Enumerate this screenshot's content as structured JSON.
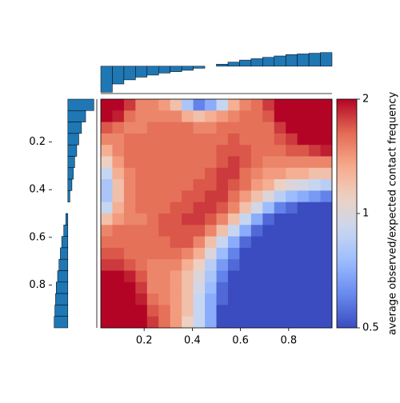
{
  "chart_data": {
    "type": "heatmap",
    "colorbar_label": "average observed/expected contact frequency",
    "xlim": [
      0.02,
      0.98
    ],
    "ylim": [
      0.02,
      0.98
    ],
    "xticks": [
      0.2,
      0.4,
      0.6,
      0.8
    ],
    "yticks": [
      0.2,
      0.4,
      0.6,
      0.8
    ],
    "clim": [
      0.5,
      2
    ],
    "cticks": [
      0.5,
      1,
      2
    ],
    "color_log_scale": true,
    "colormap": [
      "#3b4cc0",
      "#6788ee",
      "#9abbff",
      "#c9d7f0",
      "#edd1c2",
      "#f7a889",
      "#e26952",
      "#b40426"
    ],
    "z": [
      [
        2,
        2,
        1.8,
        1.5,
        1.5,
        1.4,
        1.2,
        0.8,
        0.6,
        0.7,
        0.9,
        1.3,
        1.5,
        1.6,
        1.8,
        2,
        2,
        2,
        2,
        2
      ],
      [
        2,
        1.9,
        1.6,
        1.5,
        1.5,
        1.5,
        1.5,
        1.3,
        1.2,
        1.3,
        1.4,
        1.5,
        1.6,
        1.6,
        1.7,
        2,
        2,
        2,
        2,
        2
      ],
      [
        1.7,
        1.6,
        1.5,
        1.5,
        1.6,
        1.6,
        1.6,
        1.6,
        1.5,
        1.5,
        1.6,
        1.6,
        1.6,
        1.6,
        1.6,
        1.8,
        2,
        2,
        2,
        2
      ],
      [
        1.5,
        1.5,
        1.6,
        1.6,
        1.6,
        1.6,
        1.6,
        1.6,
        1.6,
        1.6,
        1.6,
        1.7,
        1.6,
        1.6,
        1.6,
        1.7,
        1.8,
        2,
        2,
        2
      ],
      [
        1.3,
        1.5,
        1.6,
        1.6,
        1.6,
        1.6,
        1.6,
        1.6,
        1.6,
        1.6,
        1.7,
        1.7,
        1.7,
        1.6,
        1.6,
        1.6,
        1.7,
        1.7,
        1.8,
        1.9
      ],
      [
        1.1,
        1.4,
        1.6,
        1.6,
        1.6,
        1.6,
        1.6,
        1.6,
        1.6,
        1.6,
        1.7,
        1.8,
        1.7,
        1.6,
        1.5,
        1.5,
        1.5,
        1.5,
        1.5,
        1.5
      ],
      [
        0.9,
        1.3,
        1.5,
        1.6,
        1.6,
        1.6,
        1.6,
        1.6,
        1.6,
        1.7,
        1.8,
        1.8,
        1.6,
        1.5,
        1.4,
        1.4,
        1.3,
        1.3,
        1.2,
        1.2
      ],
      [
        0.8,
        1.2,
        1.5,
        1.6,
        1.6,
        1.6,
        1.6,
        1.6,
        1.7,
        1.7,
        1.8,
        1.7,
        1.6,
        1.4,
        1.3,
        1.1,
        1.0,
        0.95,
        0.9,
        0.85
      ],
      [
        0.8,
        1.2,
        1.5,
        1.6,
        1.6,
        1.6,
        1.6,
        1.7,
        1.7,
        1.8,
        1.8,
        1.6,
        1.4,
        1.2,
        1.0,
        0.85,
        0.75,
        0.7,
        0.65,
        0.6
      ],
      [
        0.9,
        1.3,
        1.5,
        1.6,
        1.6,
        1.6,
        1.7,
        1.7,
        1.8,
        1.8,
        1.7,
        1.5,
        1.2,
        0.95,
        0.75,
        0.6,
        0.55,
        0.5,
        0.5,
        0.5
      ],
      [
        1.2,
        1.4,
        1.5,
        1.5,
        1.6,
        1.7,
        1.7,
        1.8,
        1.8,
        1.7,
        1.5,
        1.2,
        0.9,
        0.7,
        0.55,
        0.5,
        0.5,
        0.5,
        0.5,
        0.5
      ],
      [
        1.5,
        1.6,
        1.6,
        1.6,
        1.6,
        1.7,
        1.7,
        1.7,
        1.7,
        1.5,
        1.2,
        0.9,
        0.7,
        0.55,
        0.5,
        0.5,
        0.5,
        0.5,
        0.5,
        0.5
      ],
      [
        1.6,
        1.6,
        1.6,
        1.6,
        1.6,
        1.6,
        1.7,
        1.7,
        1.5,
        1.2,
        0.9,
        0.7,
        0.55,
        0.5,
        0.5,
        0.5,
        0.5,
        0.5,
        0.5,
        0.5
      ],
      [
        1.7,
        1.7,
        1.6,
        1.6,
        1.6,
        1.6,
        1.6,
        1.5,
        1.3,
        1.0,
        0.75,
        0.6,
        0.5,
        0.5,
        0.5,
        0.5,
        0.5,
        0.5,
        0.5,
        0.5
      ],
      [
        1.8,
        1.8,
        1.7,
        1.6,
        1.5,
        1.5,
        1.5,
        1.3,
        1.1,
        0.85,
        0.65,
        0.55,
        0.5,
        0.5,
        0.5,
        0.5,
        0.5,
        0.5,
        0.5,
        0.5
      ],
      [
        2,
        2,
        1.9,
        1.7,
        1.5,
        1.5,
        1.4,
        1.2,
        1.0,
        0.8,
        0.6,
        0.5,
        0.5,
        0.5,
        0.5,
        0.5,
        0.5,
        0.5,
        0.5,
        0.5
      ],
      [
        2,
        2,
        2,
        1.8,
        1.5,
        1.5,
        1.4,
        1.2,
        0.95,
        0.75,
        0.55,
        0.5,
        0.5,
        0.5,
        0.5,
        0.5,
        0.5,
        0.5,
        0.5,
        0.5
      ],
      [
        2,
        2,
        2,
        1.9,
        1.6,
        1.5,
        1.4,
        1.2,
        0.9,
        0.7,
        0.55,
        0.5,
        0.5,
        0.5,
        0.5,
        0.5,
        0.5,
        0.5,
        0.5,
        0.5
      ],
      [
        2,
        2,
        2,
        2,
        1.7,
        1.6,
        1.4,
        1.2,
        0.9,
        0.7,
        0.5,
        0.5,
        0.5,
        0.5,
        0.5,
        0.5,
        0.5,
        0.5,
        0.5,
        0.5
      ],
      [
        2,
        2,
        2,
        2,
        1.8,
        1.6,
        1.4,
        1.1,
        0.9,
        0.7,
        0.5,
        0.5,
        0.5,
        0.5,
        0.5,
        0.5,
        0.5,
        0.5,
        0.5,
        0.5
      ]
    ],
    "marginal": {
      "color": "#1f77b4",
      "lim": [
        -2,
        1.1
      ],
      "values": [
        -1.9,
        -1.3,
        -1.0,
        -0.8,
        -0.65,
        -0.5,
        -0.4,
        -0.3,
        -0.15,
        0,
        0.15,
        0.3,
        0.45,
        0.55,
        0.65,
        0.75,
        0.85,
        0.9,
        0.95,
        1.0
      ]
    }
  }
}
